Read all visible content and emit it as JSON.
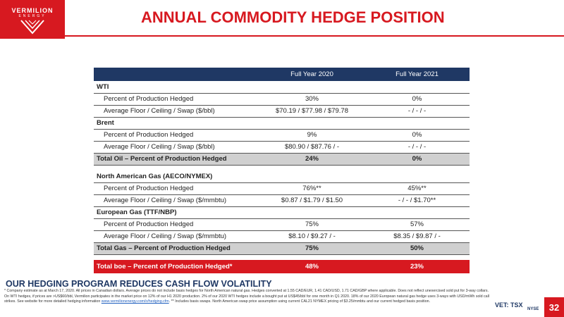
{
  "header": {
    "logo_text": "VERMILION",
    "logo_sub": "ENERGY",
    "title": "ANNUAL COMMODITY HEDGE POSITION"
  },
  "table": {
    "columns": [
      "",
      "Full Year 2020",
      "Full Year 2021"
    ],
    "wti": {
      "label": "WTI",
      "pct_label": "Percent of Production Hedged",
      "pct": [
        "30%",
        "0%"
      ],
      "swap_label": "Average Floor / Ceiling / Swap ($/bbl)",
      "swap": [
        "$70.19 / $77.98 / $79.78",
        "- / - / -"
      ]
    },
    "brent": {
      "label": "Brent",
      "pct_label": "Percent of Production Hedged",
      "pct": [
        "9%",
        "0%"
      ],
      "swap_label": "Average Floor / Ceiling / Swap ($/bbl)",
      "swap": [
        "$80.90 / $87.76 / -",
        "- / - / -"
      ]
    },
    "total_oil": {
      "label": "Total Oil – Percent of Production Hedged",
      "values": [
        "24%",
        "0%"
      ]
    },
    "na_gas": {
      "label": "North American Gas (AECO/NYMEX)",
      "pct_label": "Percent of Production Hedged",
      "pct": [
        "76%**",
        "45%**"
      ],
      "swap_label": "Average Floor / Ceiling / Swap ($/mmbtu)",
      "swap": [
        "$0.87 / $1.79 / $1.50",
        "- / - / $1.70**"
      ]
    },
    "eu_gas": {
      "label": "European Gas (TTF/NBP)",
      "pct_label": "Percent of Production Hedged",
      "pct": [
        "75%",
        "57%"
      ],
      "swap_label": "Average Floor / Ceiling / Swap ($/mmbtu)",
      "swap": [
        "$8.10 / $9.27 / -",
        "$8.35 / $9.87 / -"
      ]
    },
    "total_gas": {
      "label": "Total Gas – Percent of Production Hedged",
      "values": [
        "75%",
        "50%"
      ]
    },
    "total_boe": {
      "label": "Total boe – Percent of Production Hedged*",
      "values": [
        "48%",
        "23%"
      ]
    }
  },
  "footer": {
    "title": "OUR HEDGING PROGRAM REDUCES CASH FLOW VOLATILITY",
    "note_before_link": "* Company estimate as at March 17, 2020. All prices in Canadian dollars. Average prices do not include basis hedges for North American natural gas. Hedges converted at 1.55 CAD/EUR, 1.41 CAD/USD, 1.71 CAD/GBP where applicable. Does not reflect unexercised sold put for 3-way collars. On WTI hedges, if prices are >US$60/bbl, Vermilion participates in the market price on 12% of our H1 2020 production. 2% of our 2020 WTI hedges include a bought put at US$45/bbl for one month in Q1 2020. 18% of our 2020 European natural gas hedge uses 3-ways with USD/mWh sold call strikes. See website for more detailed hedging information ",
    "link_text": "www.vermilionenergy.com/ir/hedging.cfm",
    "note_after_link": ". ** Includes basis swaps. North American swap price assumption using current CAL21 NYMEX pricing of $3.25/mmbtu and our current hedged basis position.",
    "exchange": "VET: TSX",
    "nyse": "NYSE",
    "page_number": "32"
  }
}
